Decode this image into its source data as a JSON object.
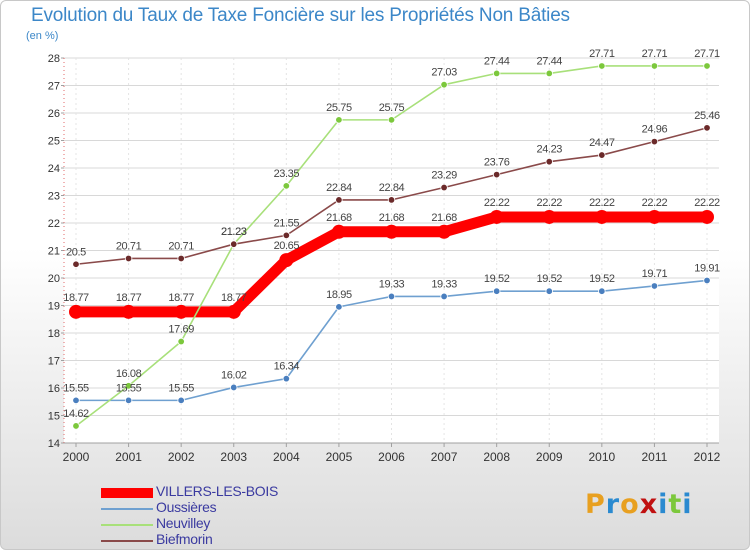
{
  "chart_data": {
    "type": "line",
    "title": "Evolution du Taux de Taxe Foncière sur les Propriétés Non Bâties",
    "xlabel": "",
    "ylabel": "(en %)",
    "ylim": [
      14,
      28
    ],
    "yticks": [
      14,
      15,
      16,
      17,
      18,
      19,
      20,
      21,
      22,
      23,
      24,
      25,
      26,
      27,
      28
    ],
    "categories": [
      "2000",
      "2001",
      "2002",
      "2003",
      "2004",
      "2005",
      "2006",
      "2007",
      "2008",
      "2009",
      "2010",
      "2011",
      "2012"
    ],
    "legend_position": "bottom-left",
    "series": [
      {
        "name": "VILLERS-LES-BOIS",
        "color": "#ff0000",
        "marker": "#ff0000",
        "emphasis": true,
        "values": [
          18.77,
          18.77,
          18.77,
          18.77,
          20.65,
          21.68,
          21.68,
          21.68,
          22.22,
          22.22,
          22.22,
          22.22,
          22.22
        ],
        "labels": [
          "18.77",
          "18.77",
          "18.77",
          "18.77",
          "20.65",
          "21.68",
          "21.68",
          "21.68",
          "22.22",
          "22.22",
          "22.22",
          "22.22",
          "22.22"
        ]
      },
      {
        "name": "Oussières",
        "color": "#6fa0d0",
        "marker": "#4a7fbf",
        "values": [
          15.55,
          15.55,
          15.55,
          16.02,
          16.34,
          18.95,
          19.33,
          19.33,
          19.52,
          19.52,
          19.52,
          19.71,
          19.91
        ],
        "labels": [
          "15.55",
          "15.55",
          "15.55",
          "16.02",
          "16.34",
          "18.95",
          "19.33",
          "19.33",
          "19.52",
          "19.52",
          "19.52",
          "19.71",
          "19.91"
        ]
      },
      {
        "name": "Neuvilley",
        "color": "#a8e07a",
        "marker": "#7cc83c",
        "values": [
          14.62,
          16.08,
          17.69,
          21.23,
          23.35,
          25.75,
          25.75,
          27.03,
          27.44,
          27.44,
          27.71,
          27.71,
          27.71
        ],
        "labels": [
          "14.62",
          "16.08",
          "17.69",
          "21.23",
          "23.35",
          "25.75",
          "25.75",
          "27.03",
          "27.44",
          "27.44",
          "27.71",
          "27.71",
          "27.71"
        ]
      },
      {
        "name": "Biefmorin",
        "color": "#8a4a4a",
        "marker": "#6b2a2a",
        "values": [
          20.5,
          20.71,
          20.71,
          21.23,
          21.55,
          22.84,
          22.84,
          23.29,
          23.76,
          24.23,
          24.47,
          24.96,
          25.46
        ],
        "labels": [
          "20.5",
          "20.71",
          "20.71",
          "21.23",
          "21.55",
          "22.84",
          "22.84",
          "23.29",
          "23.76",
          "24.23",
          "24.47",
          "24.96",
          "25.46"
        ]
      }
    ],
    "branding": {
      "logo_text": "Proxiti",
      "logo_colors": [
        "#e8a020",
        "#2a8ad0",
        "#e8a020",
        "#c01010",
        "#2a8ad0",
        "#7cc83c",
        "#2a8ad0"
      ]
    }
  }
}
